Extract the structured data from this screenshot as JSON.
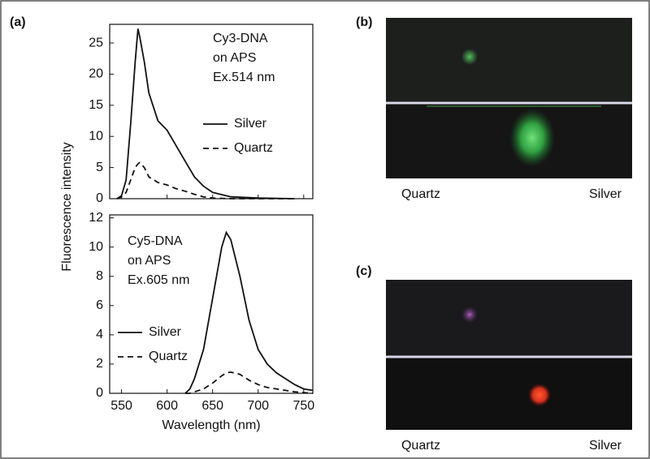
{
  "panel_a_label": "(a)",
  "chart_data": [
    {
      "type": "line",
      "ylabel": "Fluorescence intensity",
      "annotation": [
        "Cy3-DNA",
        "on APS",
        "Ex.514 nm"
      ],
      "x": [
        545,
        550,
        555,
        560,
        565,
        568,
        570,
        575,
        580,
        590,
        600,
        610,
        620,
        630,
        640,
        650,
        670,
        700,
        740
      ],
      "series": [
        {
          "name": "Silver",
          "color": "#111111",
          "line_style": "solid",
          "values": [
            0,
            0.5,
            3,
            12,
            22,
            27.3,
            26,
            22,
            17,
            12.5,
            11,
            8.5,
            6,
            3.5,
            2,
            1,
            0.3,
            0.1,
            0
          ]
        },
        {
          "name": "Quartz",
          "color": "#111111",
          "line_style": "dashed",
          "values": [
            0,
            0.3,
            1,
            3,
            5,
            5.6,
            5.8,
            5,
            3.5,
            2.6,
            2.2,
            1.6,
            1.2,
            0.7,
            0.3,
            0.1,
            0,
            0,
            0
          ]
        }
      ],
      "xlim": [
        537,
        760
      ],
      "ylim": [
        0,
        28
      ],
      "yticks": [
        0,
        5,
        10,
        15,
        20,
        25
      ],
      "legend": "right"
    },
    {
      "type": "line",
      "xlabel": "Wavelength (nm)",
      "annotation": [
        "Cy5-DNA",
        "on APS",
        "Ex.605 nm"
      ],
      "x": [
        620,
        625,
        630,
        640,
        650,
        660,
        665,
        670,
        680,
        690,
        700,
        710,
        720,
        730,
        740,
        750,
        760
      ],
      "series": [
        {
          "name": "Silver",
          "color": "#111111",
          "line_style": "solid",
          "values": [
            0,
            0.3,
            1,
            3,
            6.5,
            10,
            11,
            10.5,
            8,
            5,
            3,
            2,
            1.4,
            1,
            0.6,
            0.3,
            0.2
          ]
        },
        {
          "name": "Quartz",
          "color": "#111111",
          "line_style": "dashed",
          "values": [
            0,
            0,
            0.1,
            0.3,
            0.7,
            1.2,
            1.4,
            1.45,
            1.3,
            0.9,
            0.6,
            0.4,
            0.3,
            0.2,
            0.1,
            0.05,
            0
          ]
        }
      ],
      "xlim": [
        537,
        760
      ],
      "xticks": [
        550,
        600,
        650,
        700,
        750
      ],
      "ylim": [
        0,
        12.2
      ],
      "yticks": [
        0,
        2,
        4,
        6,
        8,
        10,
        12
      ],
      "legend": "left"
    }
  ],
  "images": [
    {
      "label": "(b)",
      "left_caption": "Quartz",
      "right_caption": "Silver"
    },
    {
      "label": "(c)",
      "left_caption": "Quartz",
      "right_caption": "Silver"
    }
  ]
}
